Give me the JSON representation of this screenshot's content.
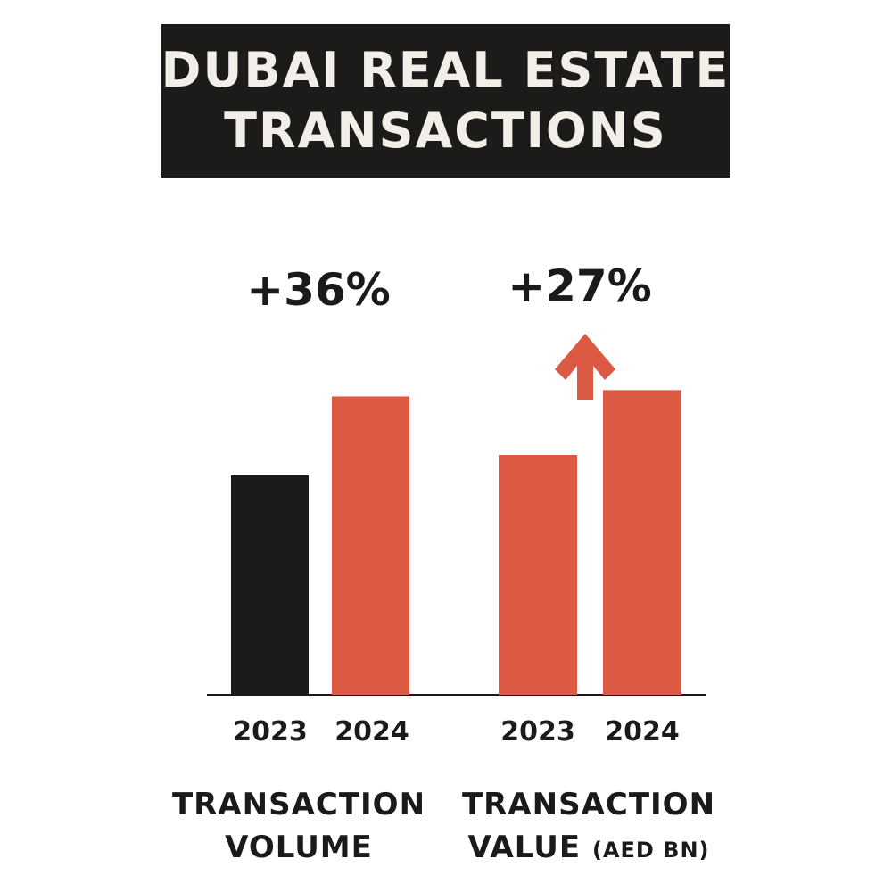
{
  "chart_data": {
    "type": "bar",
    "title_lines": [
      "DUBAI REAL ESTATE",
      "TRANSACTIONS"
    ],
    "panels": [
      {
        "category_lines": [
          "TRANSACTION",
          "VOLUME"
        ],
        "unit": "",
        "change_label": "+36%",
        "categories": [
          "2023",
          "2024"
        ],
        "values": [
          100,
          136
        ],
        "colors": [
          "#1d1b1a",
          "#dc5a43"
        ]
      },
      {
        "category_lines": [
          "TRANSACTION",
          "VALUE"
        ],
        "unit": "(AED BN)",
        "change_label": "+27%",
        "categories": [
          "2023",
          "2024"
        ],
        "values": [
          100,
          127
        ],
        "colors": [
          "#dc5a43",
          "#dc5a43"
        ],
        "arrow": "up-arrow",
        "arrow_color": "#dc5a43"
      }
    ],
    "grid": false,
    "legend": "none"
  }
}
